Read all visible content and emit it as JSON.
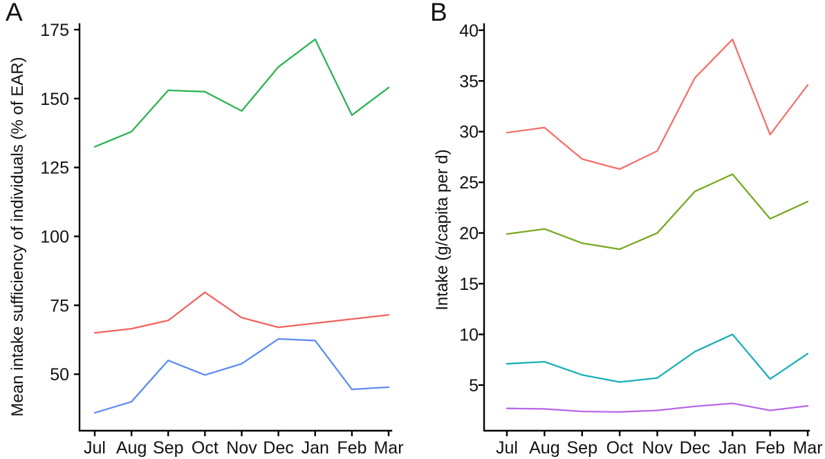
{
  "figure": {
    "background": "#ffffff",
    "text_color": "#111111",
    "axis_color": "#000000"
  },
  "chart_data": [
    {
      "type": "line",
      "panel_label": "A",
      "title": "",
      "xlabel": "",
      "ylabel": "Mean intake sufficiency of individuals (% of EAR)",
      "categories": [
        "Jul",
        "Aug",
        "Sep",
        "Oct",
        "Nov",
        "Dec",
        "Jan",
        "Feb",
        "Mar"
      ],
      "yticks": [
        50,
        75,
        100,
        125,
        150,
        175
      ],
      "ylim": [
        29.5,
        177
      ],
      "grid": false,
      "legend": "none",
      "series": [
        {
          "name": "green-line",
          "color": "#2ab34f",
          "values": [
            132.5,
            138,
            153,
            152.5,
            145.5,
            161.5,
            171.5,
            144,
            154
          ]
        },
        {
          "name": "red-line",
          "color": "#f2625e",
          "values": [
            65,
            66.5,
            69.5,
            79.7,
            70.5,
            67,
            68.5,
            70,
            71.5
          ]
        },
        {
          "name": "blue-line",
          "color": "#5b8cf0",
          "values": [
            36,
            40,
            55,
            49.7,
            53.8,
            62.8,
            62.2,
            44.5,
            45.3
          ]
        }
      ]
    },
    {
      "type": "line",
      "panel_label": "B",
      "title": "",
      "xlabel": "",
      "ylabel": "Intake (g/capita per d)",
      "categories": [
        "Jul",
        "Aug",
        "Sep",
        "Oct",
        "Nov",
        "Dec",
        "Jan",
        "Feb",
        "Mar"
      ],
      "yticks": [
        5,
        10,
        15,
        20,
        25,
        30,
        35,
        40
      ],
      "ylim": [
        0.5,
        40.6
      ],
      "grid": false,
      "legend": "none",
      "series": [
        {
          "name": "red-line",
          "color": "#f4706b",
          "values": [
            29.9,
            30.4,
            27.3,
            26.3,
            28.1,
            35.3,
            39.1,
            29.7,
            34.6
          ]
        },
        {
          "name": "olive-line",
          "color": "#78a821",
          "values": [
            19.9,
            20.4,
            19.0,
            18.4,
            20.0,
            24.1,
            25.8,
            21.4,
            23.1
          ]
        },
        {
          "name": "teal-line",
          "color": "#19afb7",
          "values": [
            7.1,
            7.3,
            6.0,
            5.3,
            5.7,
            8.3,
            10.0,
            5.6,
            8.1
          ]
        },
        {
          "name": "purple-line",
          "color": "#ba68e8",
          "values": [
            2.7,
            2.65,
            2.4,
            2.35,
            2.5,
            2.9,
            3.2,
            2.5,
            2.95
          ]
        }
      ]
    }
  ]
}
